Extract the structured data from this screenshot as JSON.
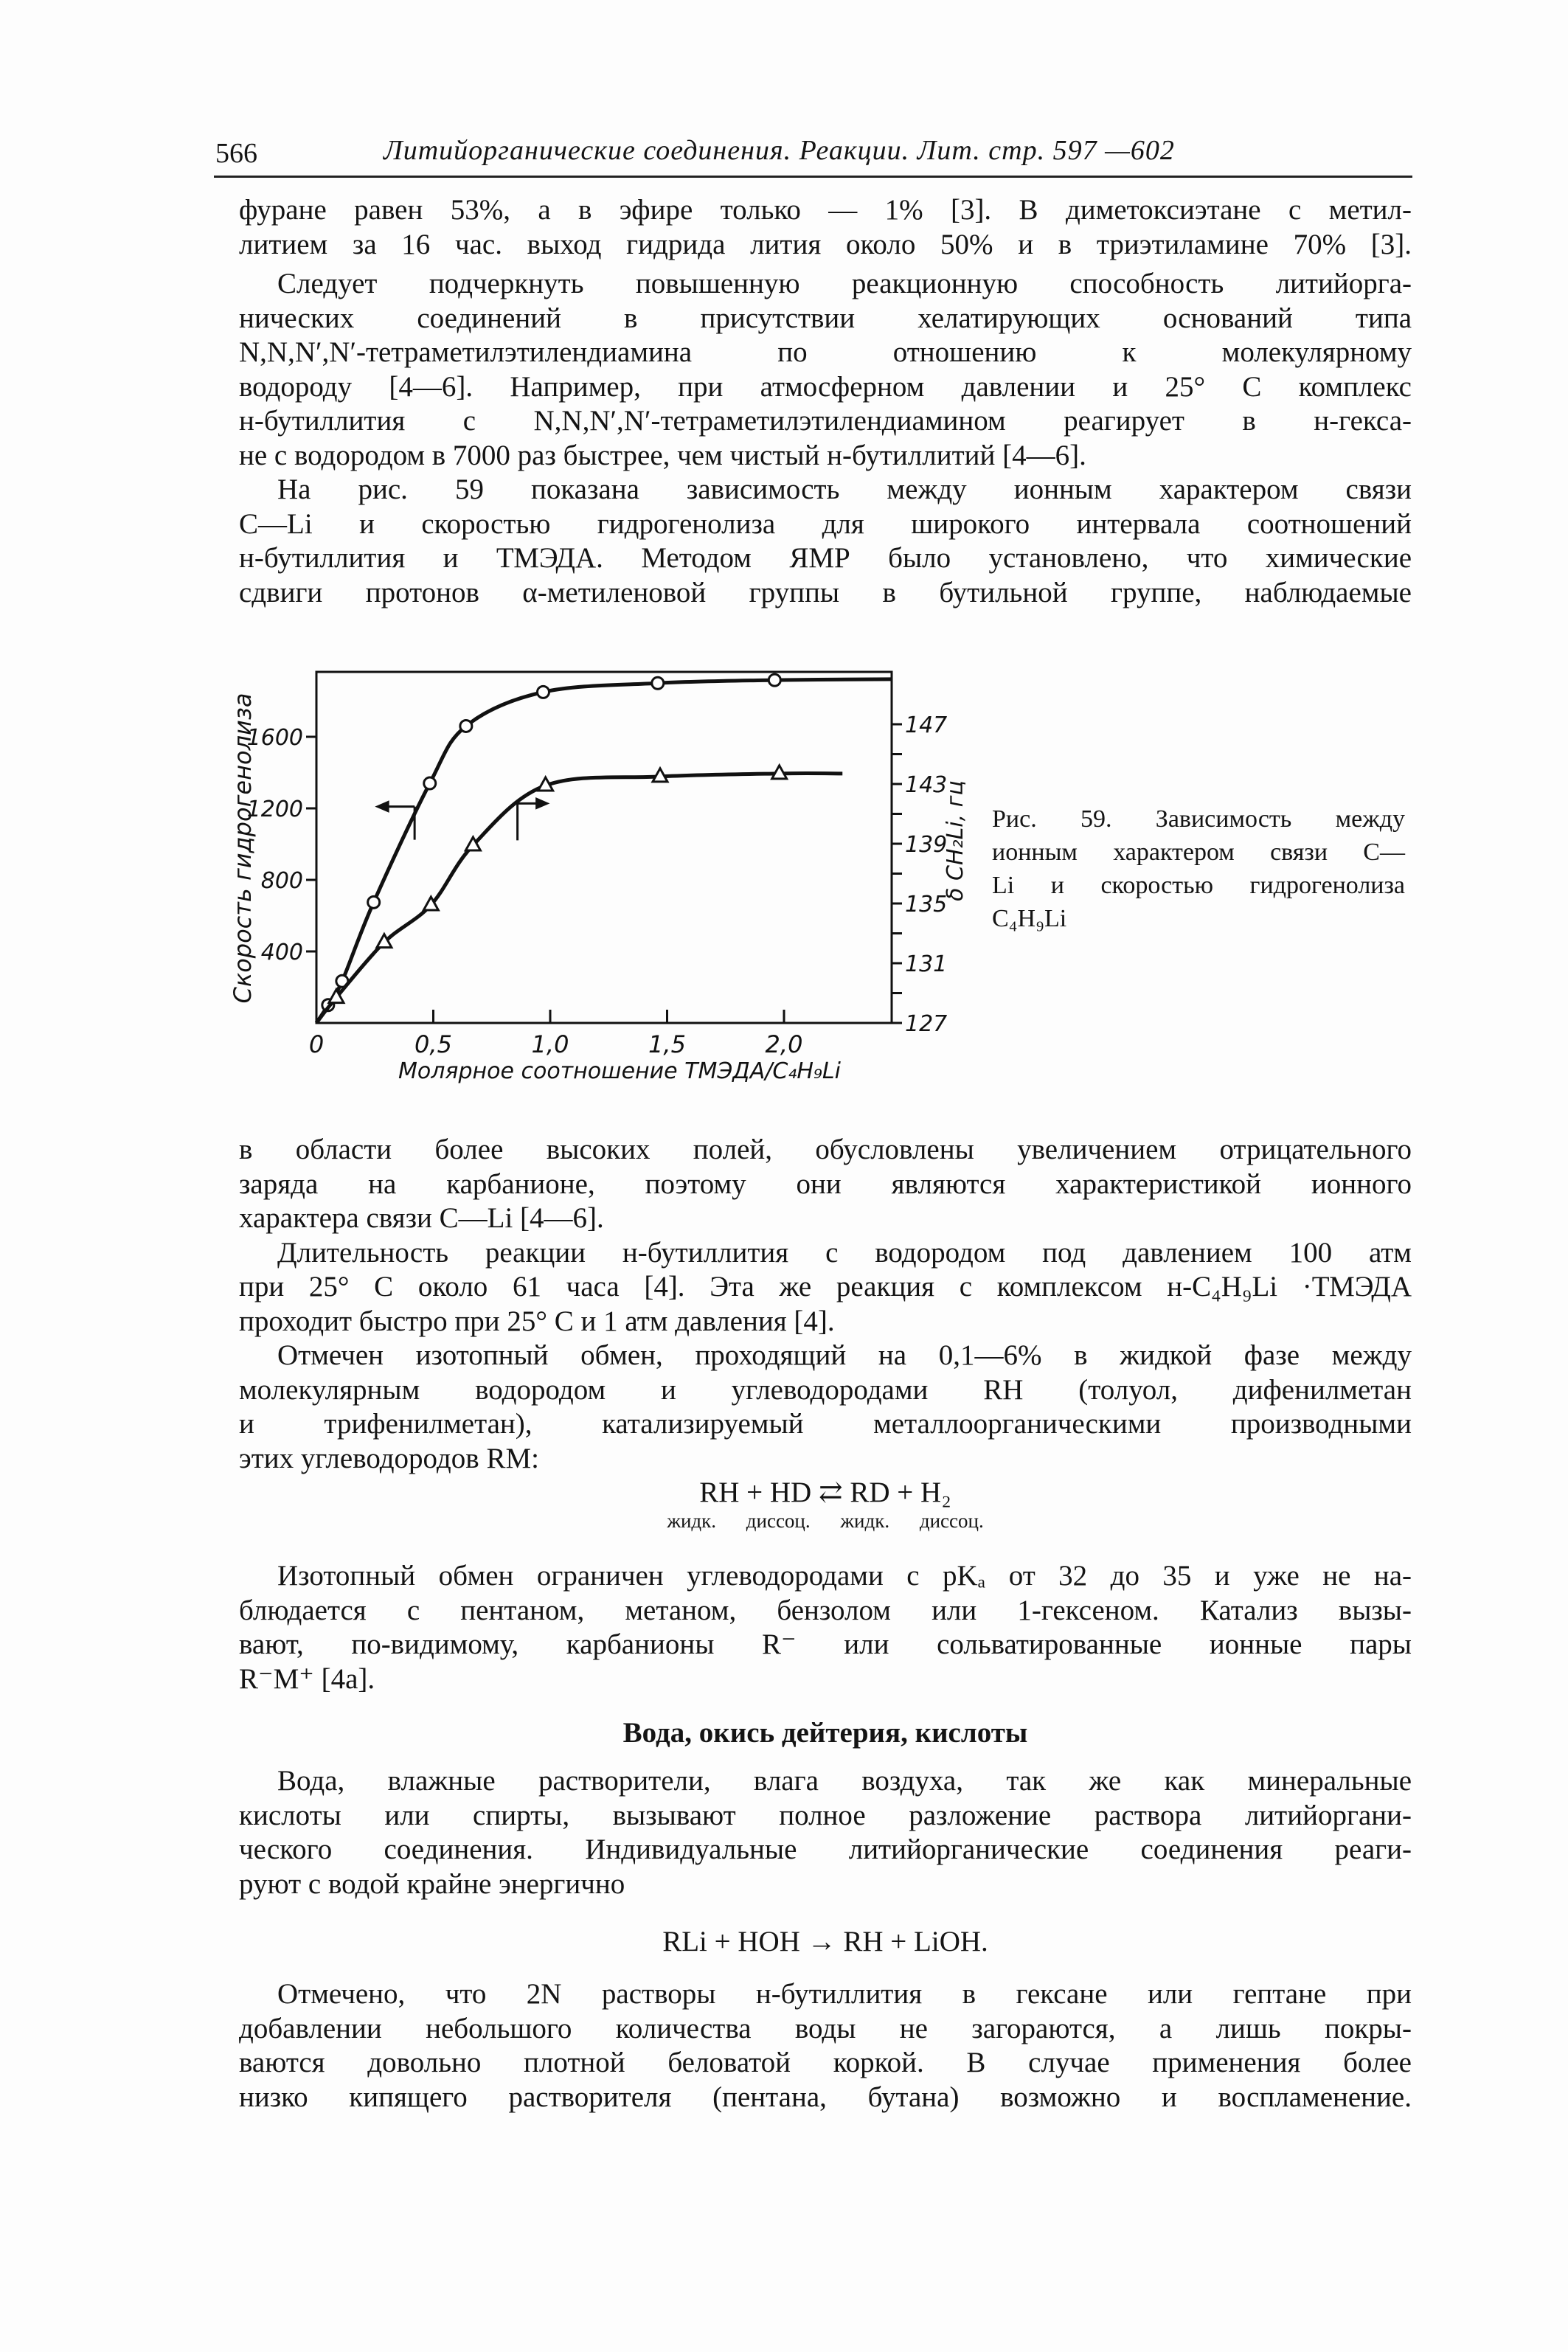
{
  "header": {
    "page_number": "566",
    "running_title": "Литийорганические соединения. Реакции. Лит. стр. 597 —602"
  },
  "text_top": {
    "p1": [
      "фуране равен 53%, а в эфире только — 1% [3]. В диметоксиэтане с метил-",
      "литием за 16 час. выход гидрида лития около 50% и в триэтиламине 70% [3]."
    ],
    "p2": [
      "Следует подчеркнуть повышенную реакционную способность литийорга-",
      "нических соединений в присутствии хелатирующих оснований типа",
      "N,N,N′,N′-тетраметилэтилендиамина по отношению к молекулярному",
      "водороду [4—6]. Например, при атмосферном давлении и 25° С комплекс",
      "н-бутиллития с N,N,N′,N′-тетраметилэтилендиамином реагирует в н-гекса-",
      "не с водородом в 7000 раз быстрее, чем чистый н-бутиллитий [4—6]."
    ],
    "p3": [
      "На рис. 59 показана зависимость между ионным характером связи",
      "C—Li и скоростью гидрогенолиза для широкого интервала соотношений",
      "н-бутиллития и ТМЭДА. Методом ЯМР было установлено, что химические",
      "сдвиги протонов α-метиленовой группы в бутильной группе, наблюдаемые"
    ]
  },
  "figure": {
    "caption": [
      "Рис. 59. Зависимость между",
      "ионным характером связи C—",
      "Li и скоростью гидрогенолиза",
      "C₄H₉Li"
    ]
  },
  "chart_data": {
    "type": "line",
    "xlabel": "Молярное соотношение ТМЭДА/C₄H₉Li",
    "ylabel": "Скорость гидрогенолиза",
    "ylabel_right": "δ CH₂Li, гц",
    "xlim": [
      0,
      2.46
    ],
    "ylim": [
      0,
      1963
    ],
    "ylim_right": [
      127,
      147
    ],
    "x_ticks": [
      0,
      0.5,
      1.0,
      1.5,
      2.0
    ],
    "x_tick_labels": [
      "0",
      "0,5",
      "1,0",
      "1,5",
      "2,0"
    ],
    "y_ticks": [
      400,
      800,
      1200,
      1600
    ],
    "y_tick_labels": [
      "400",
      "800",
      "1200",
      "1600"
    ],
    "y_right_ticks": [
      127,
      131,
      135,
      139,
      143,
      147
    ],
    "y_right_tick_labels": [
      "127",
      "131",
      "135",
      "139",
      "143",
      "147"
    ],
    "grid": false,
    "series": [
      {
        "marker": "circle",
        "axis": "left",
        "points": [
          [
            0,
            0
          ],
          [
            0.05,
            100
          ],
          [
            0.11,
            234
          ],
          [
            0.245,
            675
          ],
          [
            0.485,
            1340
          ],
          [
            0.64,
            1660
          ],
          [
            0.97,
            1850
          ],
          [
            1.46,
            1900
          ],
          [
            1.96,
            1917
          ]
        ],
        "line_end": [
          2.46,
          1922
        ]
      },
      {
        "marker": "triangle",
        "axis": "right",
        "points": [
          [
            0,
            127
          ],
          [
            0.085,
            128.7
          ],
          [
            0.29,
            132.4
          ],
          [
            0.49,
            134.9
          ],
          [
            0.67,
            138.9
          ],
          [
            0.98,
            142.9
          ],
          [
            1.47,
            143.5
          ],
          [
            1.98,
            143.7
          ]
        ],
        "line_end": [
          2.25,
          143.7
        ]
      }
    ],
    "annotations": [
      {
        "type": "arrow",
        "series": 0,
        "at_x": 0.42,
        "points_to": "left axis"
      },
      {
        "type": "arrow",
        "series": 1,
        "at_x": 0.86,
        "points_to": "right axis"
      }
    ]
  },
  "text_bottom": {
    "p4": [
      "в области более высоких полей, обусловлены увеличением отрицательного",
      "заряда на карбанионе, поэтому они являются характеристикой ионного",
      "характера связи C—Li [4—6]."
    ],
    "p5": [
      "Длительность реакции н-бутиллития с водородом под давлением 100 атм",
      "при 25° С около 61 часа [4]. Эта же реакция с комплексом н-C₄H₉Li ·ТМЭДА",
      "проходит быстро при 25° С и 1 атм давления [4]."
    ],
    "p6": [
      "Отмечен изотопный обмен, проходящий на 0,1—6% в жидкой фазе между",
      "молекулярным водородом и углеводородами RH (толуол, дифенилметан",
      "и трифенилметан), катализируемый металлоорганическими производными",
      "этих углеводородов RM:"
    ],
    "eq1": "RH + HD ⇄ RD + H₂",
    "eq1_sub": "жидк. диссоц. жидк. диссоц.",
    "p7": [
      "Изотопный обмен ограничен углеводородами с pKₐ от 32 до 35 и уже не на-",
      "блюдается с пентаном, метаном, бензолом или 1-гексеном. Катализ вызы-",
      "вают, по-видимому, карбанионы R⁻ или сольватированные ионные пары",
      "R⁻M⁺ [4а]."
    ],
    "heading": "Вода, окись дейтерия, кислоты",
    "p8": [
      "Вода, влажные растворители, влага воздуха, так же как минеральные",
      "кислоты или спирты, вызывают полное разложение раствора литийоргани-",
      "ческого соединения. Индивидуальные литийорганические соединения реаги-",
      "руют с водой крайне энергично"
    ],
    "eq2": "RLi + HOH → RH + LiOH.",
    "p9": [
      "Отмечено, что 2N растворы н-бутиллития в гексане или гептане при",
      "добавлении небольшого количества воды не загораются, а лишь покры-",
      "ваются довольно плотной беловатой коркой. В случае применения более",
      "низко кипящего растворителя (пентана, бутана) возможно и воспламенение."
    ]
  }
}
